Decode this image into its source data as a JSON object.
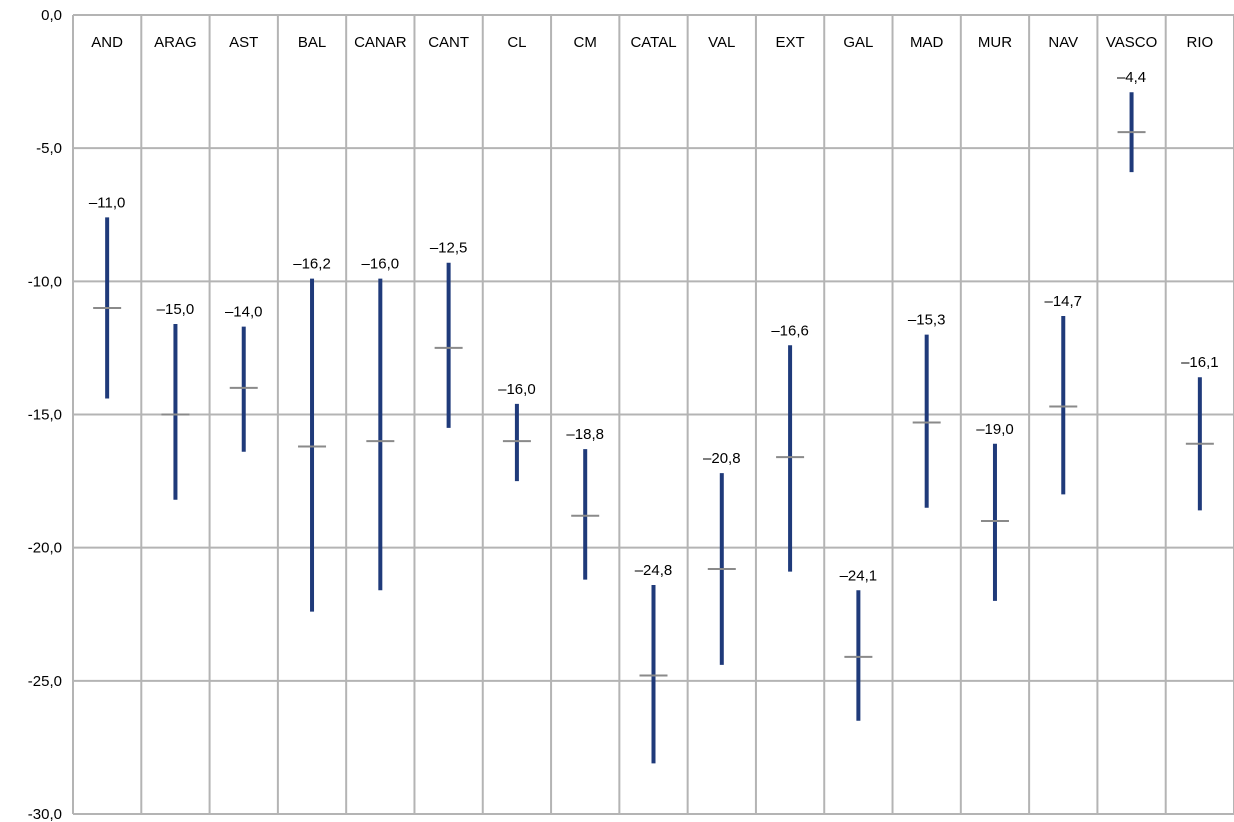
{
  "chart_data": {
    "type": "errorbar",
    "title": "",
    "xlabel": "",
    "ylabel": "",
    "ylim": [
      -30,
      0
    ],
    "yticks": [
      "0,0",
      "-5,0",
      "-10,0",
      "-15,0",
      "-20,0",
      "-25,0",
      "-30,0"
    ],
    "grid": true,
    "colors": {
      "bar": "#1f3a7a",
      "mean": "#8a8a8a",
      "grid": "#b4b4b4"
    },
    "categories": [
      "AND",
      "ARAG",
      "AST",
      "BAL",
      "CANAR",
      "CANT",
      "CL",
      "CM",
      "CATAL",
      "VAL",
      "EXT",
      "GAL",
      "MAD",
      "MUR",
      "NAV",
      "VASCO",
      "RIO"
    ],
    "values": [
      -11.0,
      -15.0,
      -14.0,
      -16.2,
      -16.0,
      -12.5,
      -16.0,
      -18.8,
      -24.8,
      -20.8,
      -16.6,
      -24.1,
      -15.3,
      -19.0,
      -14.7,
      -4.4,
      -16.1
    ],
    "value_labels": [
      "–11,0",
      "–15,0",
      "–14,0",
      "–16,2",
      "–16,0",
      "–12,5",
      "–16,0",
      "–18,8",
      "–24,8",
      "–20,8",
      "–16,6",
      "–24,1",
      "–15,3",
      "–19,0",
      "–14,7",
      "–4,4",
      "–16,1"
    ],
    "upper": [
      -7.6,
      -11.6,
      -11.7,
      -9.9,
      -9.9,
      -9.3,
      -14.6,
      -16.3,
      -21.4,
      -17.2,
      -12.4,
      -21.6,
      -12.0,
      -16.1,
      -11.3,
      -2.9,
      -13.6
    ],
    "lower": [
      -14.4,
      -18.2,
      -16.4,
      -22.4,
      -21.6,
      -15.5,
      -17.5,
      -21.2,
      -28.1,
      -24.4,
      -20.9,
      -26.5,
      -18.5,
      -22.0,
      -18.0,
      -5.9,
      -18.6
    ]
  }
}
